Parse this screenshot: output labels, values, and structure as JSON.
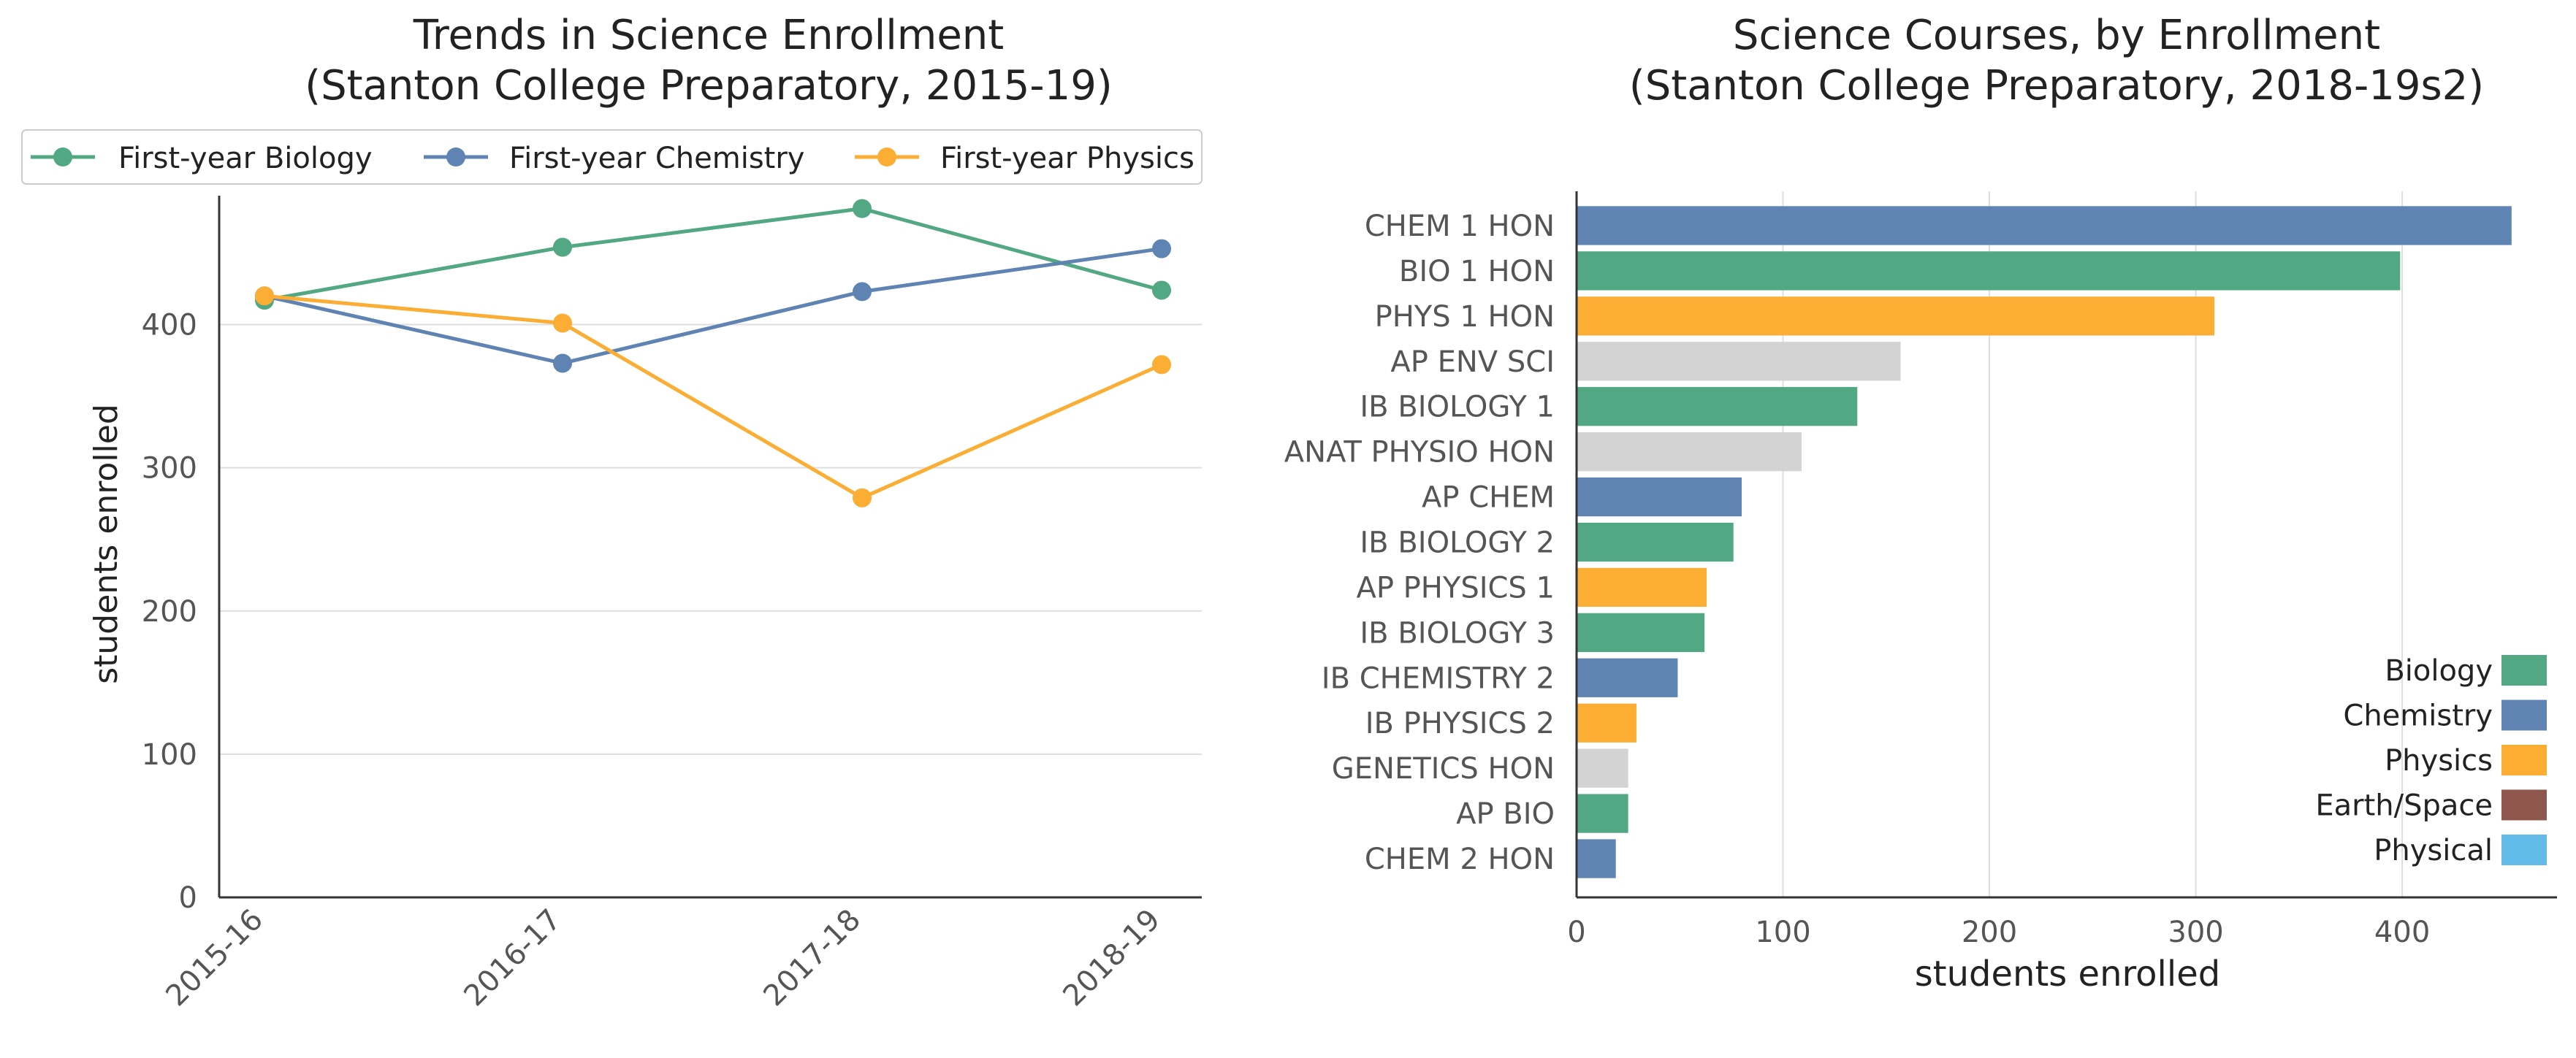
{
  "chart_data": [
    {
      "type": "line",
      "title": "Trends in Science Enrollment",
      "subtitle": "(Stanton College Preparatory, 2015-19)",
      "xlabel": "",
      "ylabel": "students enrolled",
      "categories": [
        "2015-16",
        "2016-17",
        "2017-18",
        "2018-19"
      ],
      "ylim": [
        0,
        490
      ],
      "yticks": [
        "0",
        "100",
        "200",
        "300",
        "400"
      ],
      "grid": "horizontal",
      "legend": "top",
      "series": [
        {
          "name": "First-year Biology",
          "color": "#52a882",
          "values": [
            417,
            454,
            481,
            424
          ]
        },
        {
          "name": "First-year Chemistry",
          "color": "#5f84b4",
          "values": [
            420,
            373,
            423,
            453
          ]
        },
        {
          "name": "First-year Physics",
          "color": "#fbad34",
          "values": [
            420,
            401,
            279,
            372
          ]
        }
      ]
    },
    {
      "type": "bar",
      "orientation": "horizontal",
      "title": "Science Courses, by Enrollment",
      "subtitle": "(Stanton College Preparatory, 2018-19s2)",
      "xlabel": "students enrolled",
      "ylabel": "",
      "xlim": [
        0,
        475
      ],
      "xticks": [
        "0",
        "100",
        "200",
        "300",
        "400"
      ],
      "grid": "vertical",
      "legend": "bottom-right",
      "categories": [
        "CHEM 1 HON",
        "BIO 1 HON",
        "PHYS 1 HON",
        "AP ENV SCI",
        "IB BIOLOGY 1",
        "ANAT PHYSIO HON",
        "AP CHEM",
        "IB BIOLOGY 2",
        "AP PHYSICS 1",
        "IB BIOLOGY 3",
        "IB CHEMISTRY 2",
        "IB PHYSICS 2",
        "GENETICS HON",
        "AP BIO",
        "CHEM 2 HON"
      ],
      "values": [
        453,
        399,
        309,
        157,
        136,
        109,
        80,
        76,
        63,
        62,
        49,
        29,
        25,
        25,
        19
      ],
      "groups": [
        "Chemistry",
        "Biology",
        "Physics",
        "Other",
        "Biology",
        "Other",
        "Chemistry",
        "Biology",
        "Physics",
        "Biology",
        "Chemistry",
        "Physics",
        "Other",
        "Biology",
        "Chemistry"
      ],
      "legend_items": [
        {
          "name": "Biology",
          "color": "#52a882"
        },
        {
          "name": "Chemistry",
          "color": "#5f84b4"
        },
        {
          "name": "Physics",
          "color": "#fbad34"
        },
        {
          "name": "Earth/Space",
          "color": "#8e564d"
        },
        {
          "name": "Physical",
          "color": "#63bbea"
        }
      ],
      "other_color": "#d3d3d3"
    }
  ]
}
